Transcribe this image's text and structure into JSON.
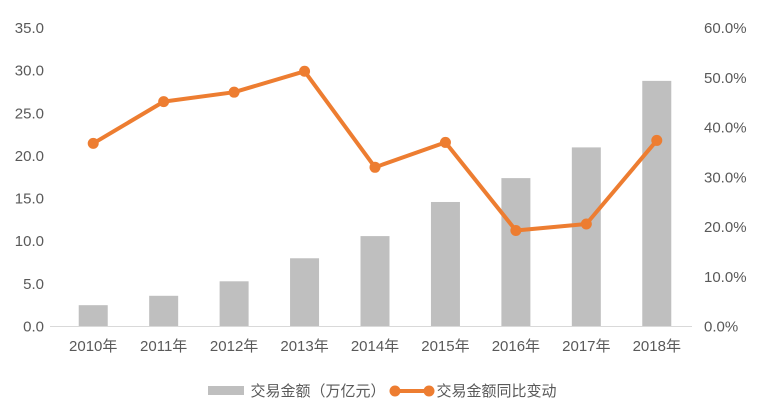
{
  "chart_data": {
    "type": "bar",
    "subtype": "combo-bar-line-dual-axis",
    "title": "",
    "categories": [
      "2010年",
      "2011年",
      "2012年",
      "2013年",
      "2014年",
      "2015年",
      "2016年",
      "2017年",
      "2018年"
    ],
    "series": [
      {
        "name": "交易金额（万亿元）",
        "type": "bar",
        "axis": "left",
        "color": "#BFBFBF",
        "values": [
          2.5,
          3.6,
          5.3,
          8.0,
          10.6,
          14.6,
          17.4,
          21.0,
          28.8
        ]
      },
      {
        "name": "交易金额同比变动",
        "type": "line",
        "axis": "right",
        "unit": "%",
        "color": "#ED7D31",
        "values": [
          36.8,
          45.2,
          47.1,
          51.3,
          32.0,
          37.0,
          19.3,
          20.6,
          37.4
        ]
      }
    ],
    "left_axis": {
      "min": 0,
      "max": 35,
      "step": 5,
      "ticks": [
        "0.0",
        "5.0",
        "10.0",
        "15.0",
        "20.0",
        "25.0",
        "30.0",
        "35.0"
      ]
    },
    "right_axis": {
      "min": 0,
      "max": 60,
      "step": 10,
      "ticks": [
        "0.0%",
        "10.0%",
        "20.0%",
        "30.0%",
        "40.0%",
        "50.0%",
        "60.0%"
      ]
    },
    "grid": false,
    "legend_position": "bottom"
  },
  "colors": {
    "bar": "#BFBFBF",
    "line": "#ED7D31",
    "axis_text": "#595959",
    "axis_line": "#D9D9D9",
    "background": "#FFFFFF"
  }
}
